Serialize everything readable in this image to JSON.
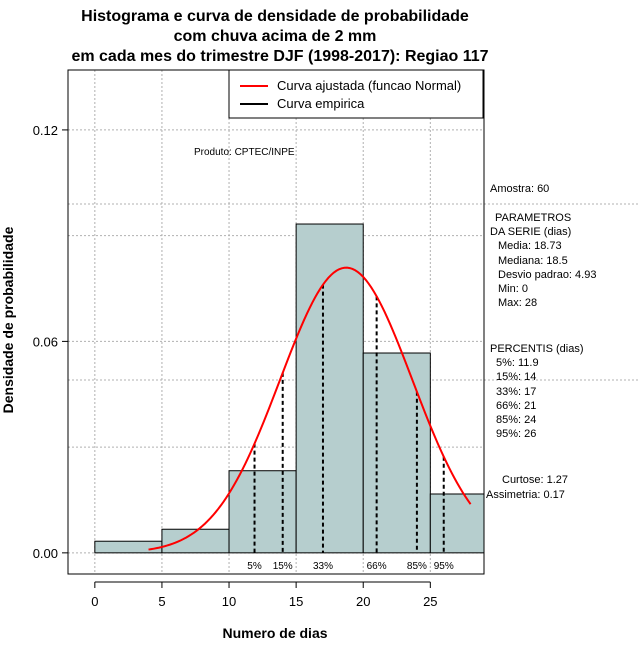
{
  "chart_data": {
    "type": "bar",
    "title_lines": [
      "Histograma e curva de densidade de probabilidade",
      "com chuva acima de 2 mm",
      "em cada mes do trimestre DJF (1998-2017): Regiao 117"
    ],
    "xlabel": "Numero de dias",
    "ylabel": "Densidade de probabilidade",
    "xlim": [
      -2,
      29
    ],
    "ylim": [
      -0.006,
      0.137
    ],
    "x_ticks": [
      0,
      5,
      10,
      15,
      20,
      25
    ],
    "x_tick_labels": [
      "0",
      "5",
      "10",
      "15",
      "20",
      "25"
    ],
    "y_ticks": [
      0.0,
      0.06,
      0.12
    ],
    "y_tick_labels": [
      "0.00",
      "0.06",
      "0.12"
    ],
    "grid": true,
    "bins": [
      {
        "start": 0,
        "end": 5,
        "density": 0.0033
      },
      {
        "start": 5,
        "end": 10,
        "density": 0.0067
      },
      {
        "start": 10,
        "end": 15,
        "density": 0.0233
      },
      {
        "start": 15,
        "end": 20,
        "density": 0.0933
      },
      {
        "start": 20,
        "end": 25,
        "density": 0.0567
      },
      {
        "start": 25,
        "end": 30,
        "density": 0.0167
      }
    ],
    "normal_fit": {
      "mean": 18.73,
      "sd": 4.93,
      "from": 4.0,
      "to": 28.0
    },
    "percentile_lines": [
      {
        "label": "5%",
        "x": 11.9
      },
      {
        "label": "15%",
        "x": 14
      },
      {
        "label": "33%",
        "x": 17
      },
      {
        "label": "66%",
        "x": 21
      },
      {
        "label": "85%",
        "x": 24
      },
      {
        "label": "95%",
        "x": 26
      }
    ],
    "legend": {
      "position": "top-right",
      "entries": [
        {
          "label": "Curva ajustada (funcao Normal)",
          "color": "#ff0000"
        },
        {
          "label": "Curva empirica",
          "color": "#000000"
        }
      ]
    },
    "annotations": {
      "produto": "Produto: CPTEC/INPE",
      "amostra": "Amostra: 60",
      "parametros_title_1": "PARAMETROS",
      "parametros_title_2": "DA SERIE (dias)",
      "media": "Media: 18.73",
      "mediana": "Mediana: 18.5",
      "desvio": "Desvio padrao: 4.93",
      "min": "Min: 0",
      "max": "Max: 28",
      "percentis_title": "PERCENTIS (dias)",
      "p5": "5%: 11.9",
      "p15": "15%: 14",
      "p33": "33%: 17",
      "p66": "66%: 21",
      "p85": "85%: 24",
      "p95": "95%: 26",
      "curtose": "Curtose: 1.27",
      "assimetria": "Assimetria: 0.17"
    },
    "colors": {
      "bar_fill": "#b6cece",
      "curve": "#ff0000",
      "grid": "#b0b0b0"
    }
  }
}
